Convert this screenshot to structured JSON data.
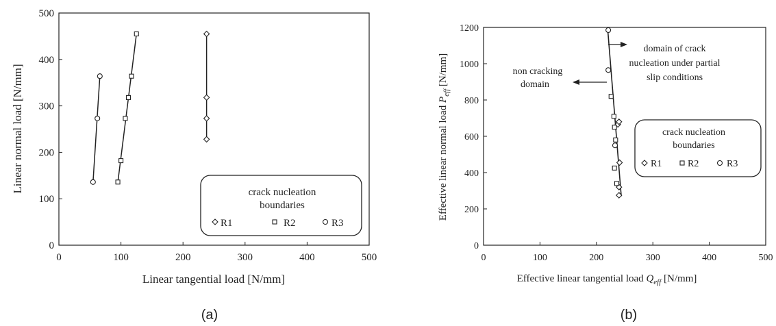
{
  "chart_data": [
    {
      "type": "scatter",
      "caption": "(a)",
      "xlabel": "Linear tangential load [N/mm]",
      "ylabel": "Linear normal load [N/mm]",
      "xlim": [
        0,
        500
      ],
      "ylim": [
        0,
        500
      ],
      "xticks": [
        "0",
        "100",
        "200",
        "300",
        "400",
        "500"
      ],
      "yticks": [
        "0",
        "100",
        "200",
        "300",
        "400",
        "500"
      ],
      "legend": {
        "title_lines": [
          "crack nucleation",
          "boundaries"
        ],
        "position": "bottom-right",
        "entries": [
          "R1",
          "R2",
          "R3"
        ]
      },
      "series": [
        {
          "name": "R1",
          "marker": "diamond",
          "points": [
            [
              238,
              228
            ],
            [
              238,
              273
            ],
            [
              238,
              318
            ],
            [
              238,
              455
            ]
          ],
          "fit_line": [
            [
              238,
              228
            ],
            [
              238,
              455
            ]
          ]
        },
        {
          "name": "R2",
          "marker": "square",
          "points": [
            [
              95,
              136
            ],
            [
              100,
              182
            ],
            [
              107,
              273
            ],
            [
              112,
              318
            ],
            [
              117,
              364
            ],
            [
              125,
              455
            ]
          ],
          "fit_line": [
            [
              95,
              136
            ],
            [
              125,
              455
            ]
          ]
        },
        {
          "name": "R3",
          "marker": "circle",
          "points": [
            [
              55,
              136
            ],
            [
              62,
              273
            ],
            [
              66,
              364
            ]
          ],
          "fit_line": [
            [
              55,
              136
            ],
            [
              66,
              364
            ]
          ]
        }
      ]
    },
    {
      "type": "scatter",
      "caption": "(b)",
      "xlabel_main": "Effective linear tangential load ",
      "xlabel_sym": "Q",
      "xlabel_sub": "eff",
      "xlabel_unit": " [N/mm]",
      "ylabel_main": "Effective linear normal load ",
      "ylabel_sym": "P",
      "ylabel_sub": "eff",
      "ylabel_unit": " [N/mm]",
      "xlim": [
        0,
        500
      ],
      "ylim": [
        0,
        1200
      ],
      "xticks": [
        "0",
        "100",
        "200",
        "300",
        "400",
        "500"
      ],
      "yticks": [
        "0",
        "200",
        "400",
        "600",
        "800",
        "1000",
        "1200"
      ],
      "annotations": {
        "left_lines": [
          "non cracking",
          "domain"
        ],
        "right_lines": [
          "domain of crack",
          "nucleation under partial",
          "slip conditions"
        ]
      },
      "legend": {
        "title_lines": [
          "crack nucleation",
          "boundaries"
        ],
        "position": "right",
        "entries": [
          "R1",
          "R2",
          "R3"
        ]
      },
      "series": [
        {
          "name": "R1",
          "marker": "diamond",
          "points": [
            [
              240,
              275
            ],
            [
              240,
              320
            ],
            [
              241,
              455
            ],
            [
              238,
              665
            ],
            [
              240,
              680
            ]
          ]
        },
        {
          "name": "R2",
          "marker": "square",
          "points": [
            [
              236,
              340
            ],
            [
              232,
              425
            ],
            [
              234,
              580
            ],
            [
              232,
              650
            ],
            [
              231,
              710
            ],
            [
              226,
              820
            ]
          ]
        },
        {
          "name": "R3",
          "marker": "circle",
          "points": [
            [
              233,
              550
            ],
            [
              221,
              965
            ],
            [
              221,
              1185
            ]
          ]
        }
      ],
      "boundary_line": [
        [
          220,
          1190
        ],
        [
          244,
          270
        ]
      ]
    }
  ]
}
